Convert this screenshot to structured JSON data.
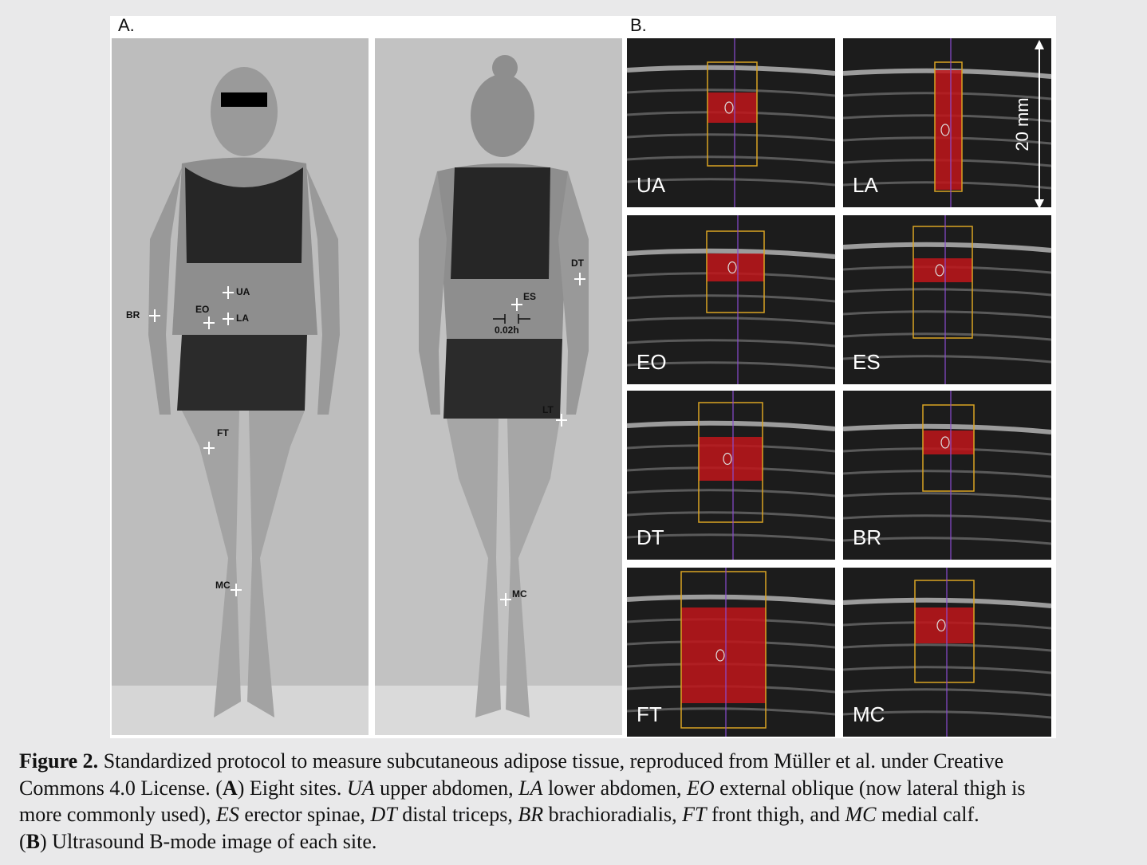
{
  "panel_a": {
    "label": "A.",
    "front_markers": [
      "BR",
      "EO",
      "UA",
      "LA",
      "FT",
      "MC"
    ],
    "back_markers": [
      "DT",
      "ES",
      "0.02h",
      "LT",
      "MC"
    ]
  },
  "panel_b": {
    "label": "B.",
    "scale": "20 mm",
    "images": [
      "UA",
      "LA",
      "EO",
      "ES",
      "DT",
      "BR",
      "FT",
      "MC"
    ]
  },
  "caption": {
    "figure": "Figure 2.",
    "segments": [
      " Standardized protocol to measure subcutaneous adipose tissue, reproduced from Müller et al. under Creative",
      "Commons 4.0 License. (",
      "A",
      ") Eight sites. ",
      "UA",
      " upper abdomen, ",
      "LA",
      " lower abdomen, ",
      "EO",
      " external oblique (now lateral thigh is",
      "more commonly used), ",
      "ES",
      " erector spinae, ",
      "DT",
      " distal triceps, ",
      "BR",
      " brachioradialis, ",
      "FT",
      " front thigh, and ",
      "MC",
      " medial calf.",
      "(",
      "B",
      ") Ultrasound B-mode image of each site."
    ]
  }
}
